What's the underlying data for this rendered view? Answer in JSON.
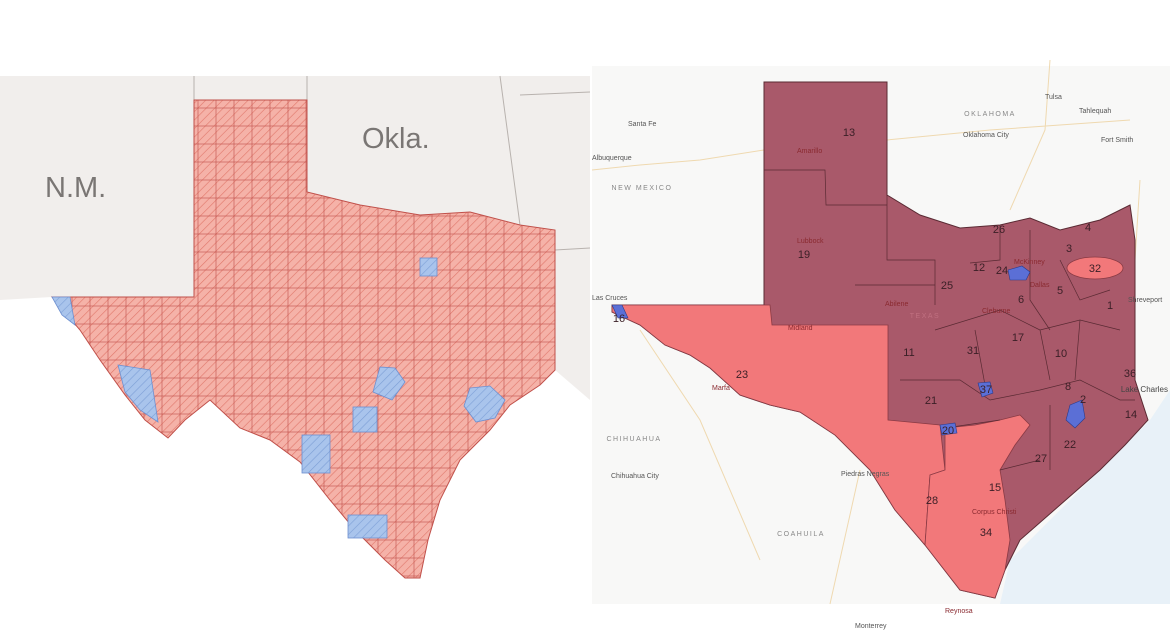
{
  "left_map": {
    "state_labels": [
      "N.M.",
      "Okla."
    ],
    "colors": {
      "background_states": "#f1eeec",
      "republican_county": "#f5b2a8",
      "hatch": "#e0766a",
      "democratic_county": "#a9c4ec"
    }
  },
  "right_map": {
    "region_labels": [
      "OKLAHOMA",
      "NEW MEXICO",
      "CHIHUAHUA",
      "COAHUILA",
      "TEXAS"
    ],
    "cities": [
      "Santa Fe",
      "Albuquerque",
      "Amarillo",
      "Lubbock",
      "Tulsa",
      "Tahlequah",
      "Oklahoma City",
      "Fort Smith",
      "Las Cruces",
      "Midland",
      "Abilene",
      "McKinney",
      "Dallas",
      "Cleburne",
      "Shreveport",
      "Marfa",
      "Chihuahua City",
      "Piedras Negras",
      "Corpus Christi",
      "Reynosa",
      "Monterrey",
      "Lake Charles"
    ],
    "district_labels": [
      "13",
      "19",
      "26",
      "4",
      "3",
      "12",
      "24",
      "32",
      "25",
      "5",
      "6",
      "1",
      "17",
      "31",
      "11",
      "10",
      "36",
      "8",
      "2",
      "14",
      "22",
      "27",
      "21",
      "37",
      "20",
      "23",
      "15",
      "28",
      "34",
      "16"
    ],
    "colors": {
      "republican_safe": "#a9596a",
      "republican_competitive": "#f2787a",
      "democratic": "#5b6fd6",
      "water": "#e8f1f8"
    }
  }
}
